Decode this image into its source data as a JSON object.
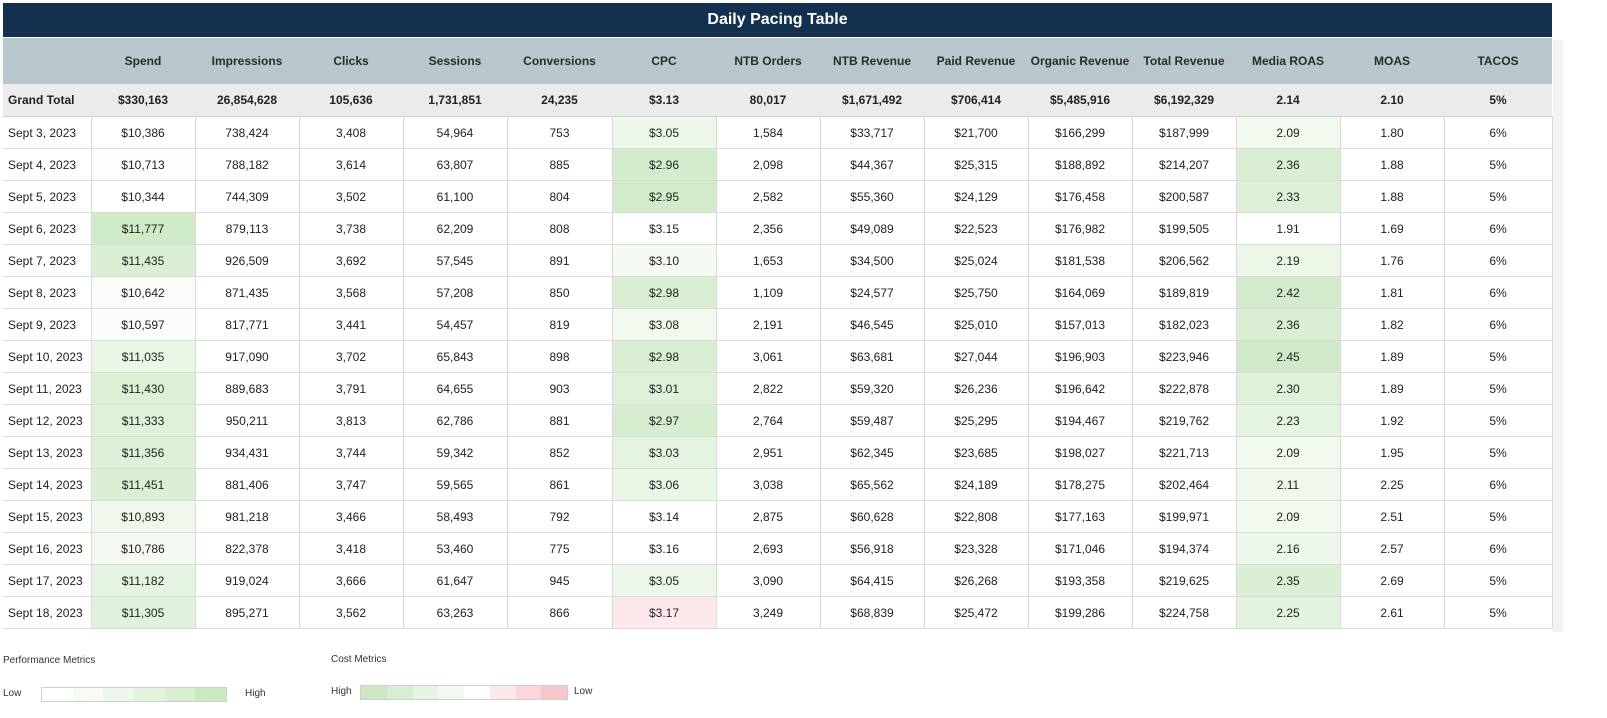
{
  "title": "Daily Pacing Table",
  "columns": [
    "",
    "Spend",
    "Impressions",
    "Clicks",
    "Sessions",
    "Conversions",
    "CPC",
    "NTB Orders",
    "NTB Revenue",
    "Paid Revenue",
    "Organic Revenue",
    "Total Revenue",
    "Media ROAS",
    "MOAS",
    "TACOS"
  ],
  "grand_total": [
    "Grand Total",
    "$330,163",
    "26,854,628",
    "105,636",
    "1,731,851",
    "24,235",
    "$3.13",
    "80,017",
    "$1,671,492",
    "$706,414",
    "$5,485,916",
    "$6,192,329",
    "2.14",
    "2.10",
    "5%"
  ],
  "rows": [
    [
      "Sept 3, 2023",
      "$10,386",
      "738,424",
      "3,408",
      "54,964",
      "753",
      "$3.05",
      "1,584",
      "$33,717",
      "$21,700",
      "$166,299",
      "$187,999",
      "2.09",
      "1.80",
      "6%"
    ],
    [
      "Sept 4, 2023",
      "$10,713",
      "788,182",
      "3,614",
      "63,807",
      "885",
      "$2.96",
      "2,098",
      "$44,367",
      "$25,315",
      "$188,892",
      "$214,207",
      "2.36",
      "1.88",
      "5%"
    ],
    [
      "Sept 5, 2023",
      "$10,344",
      "744,309",
      "3,502",
      "61,100",
      "804",
      "$2.95",
      "2,582",
      "$55,360",
      "$24,129",
      "$176,458",
      "$200,587",
      "2.33",
      "1.88",
      "5%"
    ],
    [
      "Sept 6, 2023",
      "$11,777",
      "879,113",
      "3,738",
      "62,209",
      "808",
      "$3.15",
      "2,356",
      "$49,089",
      "$22,523",
      "$176,982",
      "$199,505",
      "1.91",
      "1.69",
      "6%"
    ],
    [
      "Sept 7, 2023",
      "$11,435",
      "926,509",
      "3,692",
      "57,545",
      "891",
      "$3.10",
      "1,653",
      "$34,500",
      "$25,024",
      "$181,538",
      "$206,562",
      "2.19",
      "1.76",
      "6%"
    ],
    [
      "Sept 8, 2023",
      "$10,642",
      "871,435",
      "3,568",
      "57,208",
      "850",
      "$2.98",
      "1,109",
      "$24,577",
      "$25,750",
      "$164,069",
      "$189,819",
      "2.42",
      "1.81",
      "6%"
    ],
    [
      "Sept 9, 2023",
      "$10,597",
      "817,771",
      "3,441",
      "54,457",
      "819",
      "$3.08",
      "2,191",
      "$46,545",
      "$25,010",
      "$157,013",
      "$182,023",
      "2.36",
      "1.82",
      "6%"
    ],
    [
      "Sept 10, 2023",
      "$11,035",
      "917,090",
      "3,702",
      "65,843",
      "898",
      "$2.98",
      "3,061",
      "$63,681",
      "$27,044",
      "$196,903",
      "$223,946",
      "2.45",
      "1.89",
      "5%"
    ],
    [
      "Sept 11, 2023",
      "$11,430",
      "889,683",
      "3,791",
      "64,655",
      "903",
      "$3.01",
      "2,822",
      "$59,320",
      "$26,236",
      "$196,642",
      "$222,878",
      "2.30",
      "1.89",
      "5%"
    ],
    [
      "Sept 12, 2023",
      "$11,333",
      "950,211",
      "3,813",
      "62,786",
      "881",
      "$2.97",
      "2,764",
      "$59,487",
      "$25,295",
      "$194,467",
      "$219,762",
      "2.23",
      "1.92",
      "5%"
    ],
    [
      "Sept 13, 2023",
      "$11,356",
      "934,431",
      "3,744",
      "59,342",
      "852",
      "$3.03",
      "2,951",
      "$62,345",
      "$23,685",
      "$198,027",
      "$221,713",
      "2.09",
      "1.95",
      "5%"
    ],
    [
      "Sept 14, 2023",
      "$11,451",
      "881,406",
      "3,747",
      "59,565",
      "861",
      "$3.06",
      "3,038",
      "$65,562",
      "$24,189",
      "$178,275",
      "$202,464",
      "2.11",
      "2.25",
      "6%"
    ],
    [
      "Sept 15, 2023",
      "$10,893",
      "981,218",
      "3,466",
      "58,493",
      "792",
      "$3.14",
      "2,875",
      "$60,628",
      "$22,808",
      "$177,163",
      "$199,971",
      "2.09",
      "2.51",
      "5%"
    ],
    [
      "Sept 16, 2023",
      "$10,786",
      "822,378",
      "3,418",
      "53,460",
      "775",
      "$3.16",
      "2,693",
      "$56,918",
      "$23,328",
      "$171,046",
      "$194,374",
      "2.16",
      "2.57",
      "6%"
    ],
    [
      "Sept 17, 2023",
      "$11,182",
      "919,024",
      "3,666",
      "61,647",
      "945",
      "$3.05",
      "3,090",
      "$64,415",
      "$26,268",
      "$193,358",
      "$219,625",
      "2.35",
      "2.69",
      "5%"
    ],
    [
      "Sept 18, 2023",
      "$11,305",
      "895,271",
      "3,562",
      "63,263",
      "866",
      "$3.17",
      "3,249",
      "$68,839",
      "$25,472",
      "$199,286",
      "$224,758",
      "2.25",
      "2.61",
      "5%"
    ]
  ],
  "colors": {
    "header_bg": "#b8c7cc",
    "title_bg": "#14304f",
    "grand_total_bg": "#ebebeb",
    "perf_scale": [
      "#ffffff",
      "#f6fbf4",
      "#eef7eb",
      "#e4f3df",
      "#d9eed3",
      "#cbe8c3"
    ],
    "cost_scale": [
      "#cbe8c3",
      "#d8eed2",
      "#e6f4e2",
      "#f3f9f1",
      "#ffffff",
      "#fde9ec",
      "#fbd7dc",
      "#f9c5cc"
    ]
  },
  "cell_shading": {
    "spend": [
      "#ffffff",
      "#fdfefd",
      "#ffffff",
      "#cfeac7",
      "#dbefd5",
      "#f9fcf8",
      "#fafdf9",
      "#eaf6e6",
      "#dcf0d6",
      "#dff1d9",
      "#def0d8",
      "#dbefd5",
      "#f0f8ed",
      "#f4faf2",
      "#e5f4e0",
      "#e1f2dc"
    ],
    "cpc": [
      "#edf7ea",
      "#d4ecce",
      "#d2ebcb",
      "#ffffff",
      "#f5fbf3",
      "#d9eed3",
      "#f2f9ef",
      "#d9eed3",
      "#e0f1da",
      "#d6edd0",
      "#e5f4e0",
      "#eaf6e6",
      "#ffffff",
      "#ffffff",
      "#edf7ea",
      "#fde9ec"
    ],
    "media_roas": [
      "#f2f9ef",
      "#d9eed3",
      "#ddf0d7",
      "#ffffff",
      "#ecf7e8",
      "#d3ebcc",
      "#d9eed3",
      "#d0e9c8",
      "#e0f1da",
      "#e6f4e2",
      "#f2f9ef",
      "#f0f8ed",
      "#f2f9ef",
      "#eef7eb",
      "#dbefd5",
      "#e4f3df"
    ]
  },
  "legend": {
    "performance_title": "Performance Metrics",
    "performance_low": "Low",
    "performance_high": "High",
    "cost_title": "Cost Metrics",
    "cost_high": "High",
    "cost_low": "Low"
  }
}
